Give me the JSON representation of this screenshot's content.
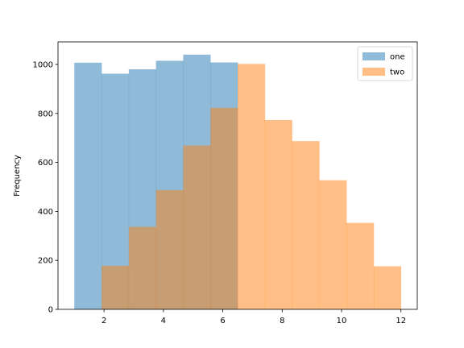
{
  "chart_data": {
    "type": "bar",
    "title": "",
    "xlabel": "",
    "ylabel": "Frequency",
    "xlim": [
      0.45,
      12.55
    ],
    "ylim": [
      0,
      1092
    ],
    "xticks": [
      2,
      4,
      6,
      8,
      10,
      12
    ],
    "yticks": [
      0,
      200,
      400,
      600,
      800,
      1000
    ],
    "legend_position": "top-right",
    "bar_opacity": 0.5,
    "series": [
      {
        "name": "one",
        "color": "#1f77b4",
        "bin_edges": [
          1.0,
          1.917,
          2.833,
          3.75,
          4.667,
          5.583,
          6.5
        ],
        "values": [
          1007,
          962,
          980,
          1015,
          1040,
          1008
        ]
      },
      {
        "name": "two",
        "color": "#ff7f0e",
        "bin_edges": [
          1.917,
          2.833,
          3.75,
          4.667,
          5.583,
          6.5,
          7.417,
          8.333,
          9.25,
          10.167,
          11.083,
          12.0
        ],
        "values": [
          178,
          337,
          487,
          669,
          823,
          1002,
          773,
          687,
          527,
          353,
          176
        ]
      }
    ]
  }
}
